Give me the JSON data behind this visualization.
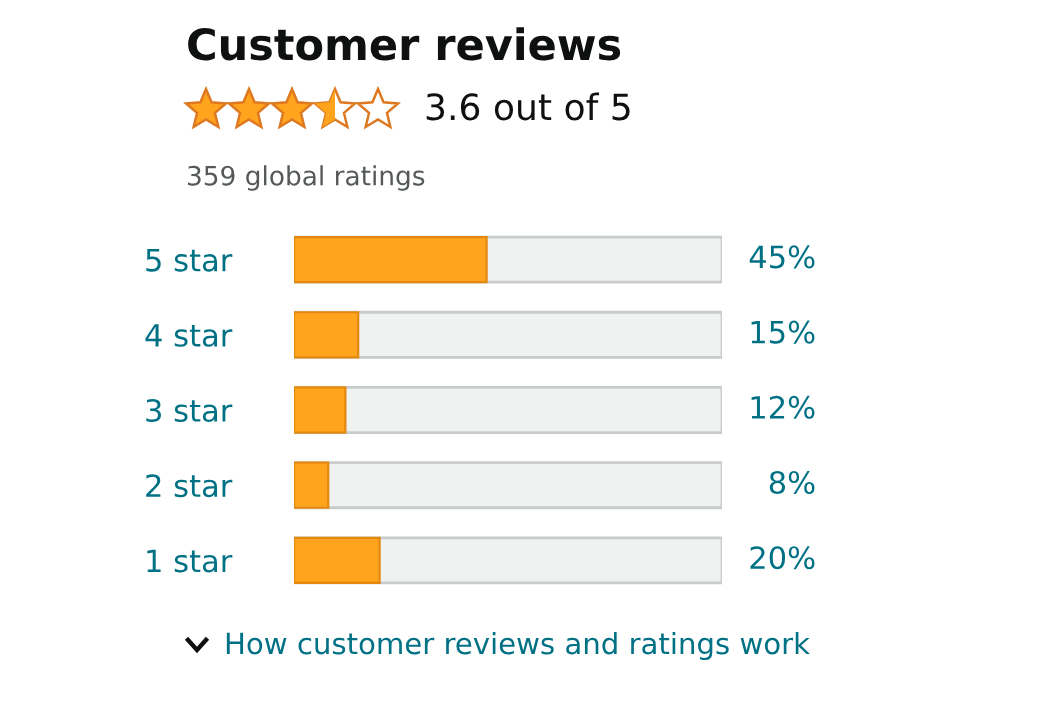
{
  "chart_data": {
    "type": "bar",
    "orientation": "horizontal",
    "title": "Customer reviews",
    "subtitle": "3.6 out of 5",
    "annotations": [
      "359 global ratings",
      "How customer reviews and ratings work"
    ],
    "categories": [
      "5 star",
      "4 star",
      "3 star",
      "2 star",
      "1 star"
    ],
    "values": [
      45,
      15,
      12,
      8,
      20
    ],
    "value_labels": [
      "45%",
      "15%",
      "12%",
      "8%",
      "20%"
    ],
    "color": "#ffa41c",
    "xlim": [
      0,
      100
    ],
    "tick_labels": "y",
    "grid": false,
    "legend": false
  }
}
